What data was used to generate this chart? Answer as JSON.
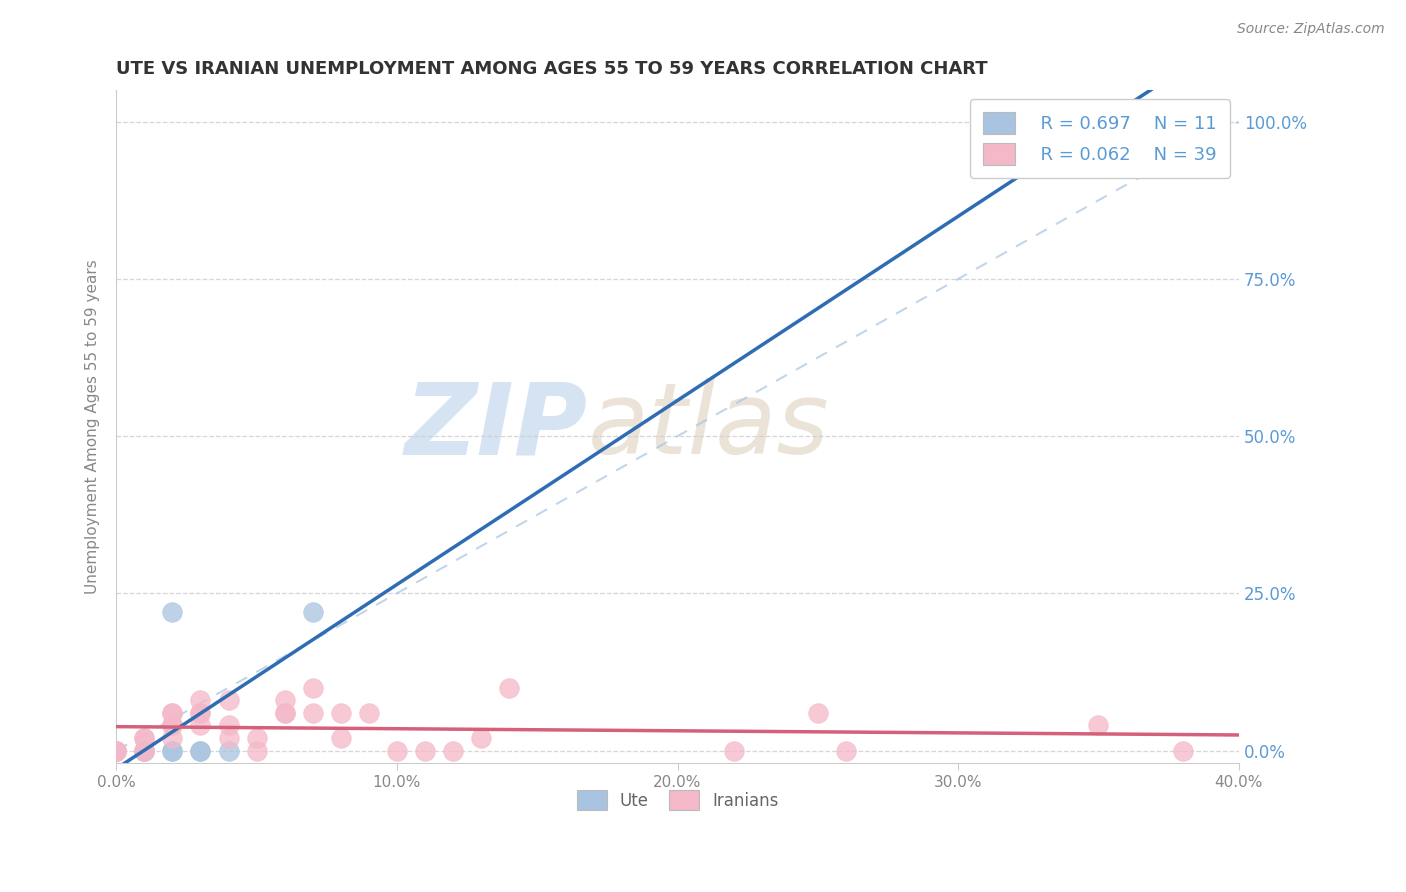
{
  "title": "UTE VS IRANIAN UNEMPLOYMENT AMONG AGES 55 TO 59 YEARS CORRELATION CHART",
  "source": "Source: ZipAtlas.com",
  "ylabel": "Unemployment Among Ages 55 to 59 years",
  "xlim": [
    0.0,
    0.4
  ],
  "ylim": [
    -0.02,
    1.05
  ],
  "yticks": [
    0.0,
    0.25,
    0.5,
    0.75,
    1.0
  ],
  "ytick_labels": [
    "0.0%",
    "25.0%",
    "50.0%",
    "75.0%",
    "100.0%"
  ],
  "xticks": [
    0.0,
    0.1,
    0.2,
    0.3,
    0.4
  ],
  "xtick_labels": [
    "0.0%",
    "10.0%",
    "20.0%",
    "30.0%",
    "40.0%"
  ],
  "legend_labels": [
    "Ute",
    "Iranians"
  ],
  "ute_R": 0.697,
  "ute_N": 11,
  "iranian_R": 0.062,
  "iranian_N": 39,
  "ute_color": "#a8c4e0",
  "ute_line_color": "#2e6db4",
  "iranian_color": "#f4b8c8",
  "iranian_line_color": "#d4607a",
  "background_color": "#ffffff",
  "watermark_zip": "ZIP",
  "watermark_atlas": "atlas",
  "ute_x": [
    0.0,
    0.01,
    0.01,
    0.02,
    0.02,
    0.02,
    0.03,
    0.03,
    0.04,
    0.07,
    0.35
  ],
  "ute_y": [
    0.0,
    0.0,
    0.0,
    0.0,
    0.0,
    0.22,
    0.0,
    0.0,
    0.0,
    0.22,
    1.0
  ],
  "iranian_x": [
    0.0,
    0.0,
    0.0,
    0.01,
    0.01,
    0.01,
    0.01,
    0.02,
    0.02,
    0.02,
    0.02,
    0.02,
    0.03,
    0.03,
    0.03,
    0.03,
    0.04,
    0.04,
    0.04,
    0.05,
    0.05,
    0.06,
    0.06,
    0.06,
    0.07,
    0.07,
    0.08,
    0.08,
    0.09,
    0.1,
    0.11,
    0.12,
    0.13,
    0.14,
    0.22,
    0.25,
    0.26,
    0.35,
    0.38
  ],
  "iranian_y": [
    0.0,
    0.0,
    0.0,
    0.0,
    0.0,
    0.02,
    0.02,
    0.02,
    0.04,
    0.04,
    0.06,
    0.06,
    0.04,
    0.06,
    0.06,
    0.08,
    0.02,
    0.04,
    0.08,
    0.0,
    0.02,
    0.06,
    0.06,
    0.08,
    0.06,
    0.1,
    0.06,
    0.02,
    0.06,
    0.0,
    0.0,
    0.0,
    0.02,
    0.1,
    0.0,
    0.06,
    0.0,
    0.04,
    0.0
  ],
  "grid_color": "#cccccc",
  "tick_label_color_right": "#5b9bd5",
  "tick_label_color_x": "#888888"
}
